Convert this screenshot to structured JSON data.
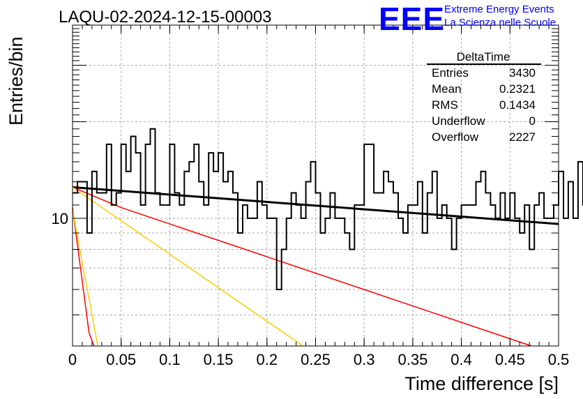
{
  "chart_data": {
    "type": "histogram",
    "title": "LAQU-02-2024-12-15-00003",
    "xlabel": "Time difference [s]",
    "ylabel": "Entries/bin",
    "xlim": [
      0,
      0.5
    ],
    "ylim": [
      4,
      40
    ],
    "yscale": "log",
    "grid": true,
    "x_ticks": [
      "0",
      "0.05",
      "0.1",
      "0.15",
      "0.2",
      "0.25",
      "0.3",
      "0.35",
      "0.4",
      "0.45",
      "0.5"
    ],
    "y_tick_labels": [
      "10"
    ],
    "bin_width": 0.005,
    "bin_values": [
      12,
      13,
      13,
      9,
      14,
      12,
      12,
      17,
      11,
      12,
      17,
      14,
      18,
      16,
      11,
      17,
      19,
      12,
      11,
      11,
      17,
      12,
      11,
      14,
      15,
      17,
      13,
      11,
      16,
      14,
      16,
      13,
      14,
      12,
      9,
      11,
      10,
      10,
      13,
      11,
      10,
      10,
      6,
      8,
      10,
      12,
      11,
      10,
      13,
      15,
      12,
      9,
      10,
      12,
      10,
      10,
      9,
      8,
      11,
      11,
      17,
      17,
      12,
      12,
      14,
      13,
      12,
      10,
      9,
      11,
      11,
      13,
      9,
      12,
      14,
      10,
      11,
      10,
      8,
      10,
      11,
      11,
      11,
      13,
      14,
      12,
      11,
      10,
      12,
      10,
      12,
      10,
      9,
      11,
      8,
      11,
      12,
      10,
      10,
      11,
      14,
      10,
      13,
      10,
      15,
      11,
      8,
      11,
      12,
      10,
      12,
      10,
      9,
      12,
      11,
      13,
      11,
      10,
      11,
      12,
      13,
      11,
      14,
      10,
      9,
      9,
      11,
      11,
      12,
      9,
      10,
      11,
      12,
      10,
      11,
      11,
      10,
      10,
      13,
      11,
      14,
      10,
      11,
      11,
      9,
      10,
      12,
      9,
      9,
      10
    ],
    "fits": [
      {
        "color": "#000000",
        "width": 3,
        "points": [
          [
            0,
            12.5
          ],
          [
            0.5,
            9.6
          ]
        ]
      },
      {
        "color": "#ff0000",
        "width": 1.5,
        "points": [
          [
            0,
            12.5
          ],
          [
            0.05,
            10.8
          ],
          [
            0.472,
            4.0
          ]
        ]
      },
      {
        "color": "#ffcc00",
        "width": 1.5,
        "points": [
          [
            0,
            12.5
          ],
          [
            0.237,
            4.0
          ]
        ]
      },
      {
        "color": "#ff0000",
        "width": 1.5,
        "points": [
          [
            0,
            10.8
          ],
          [
            0.017,
            4.4
          ],
          [
            0.022,
            4.0
          ]
        ]
      },
      {
        "color": "#ffcc00",
        "width": 1.5,
        "points": [
          [
            0,
            10.6
          ],
          [
            0.026,
            4.0
          ]
        ]
      }
    ],
    "stats": {
      "name": "DeltaTime",
      "rows": [
        {
          "label": "Entries",
          "value": "3430"
        },
        {
          "label": "Mean",
          "value": "0.2321"
        },
        {
          "label": "RMS",
          "value": "0.1434"
        },
        {
          "label": "Underflow",
          "value": "0"
        },
        {
          "label": "Overflow",
          "value": "2227"
        }
      ]
    }
  },
  "branding": {
    "logo": "EEE",
    "line1": "Extreme Energy Events",
    "line2": "La Scienza nelle Scuole",
    "logo_color": "#0000ff"
  }
}
